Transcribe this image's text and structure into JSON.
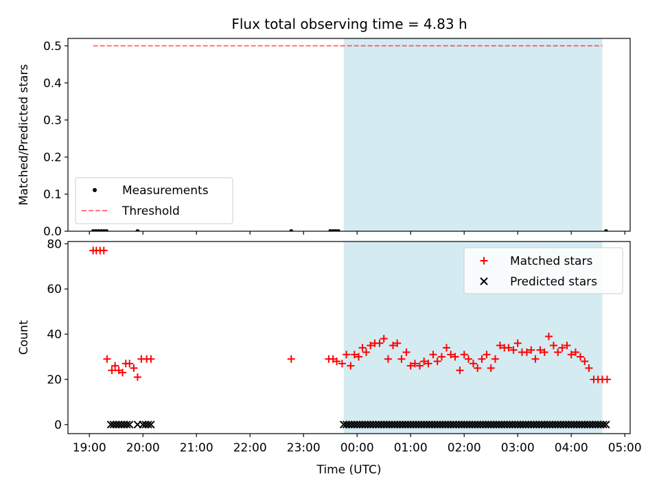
{
  "title": "Flux total observing time = 4.83 h",
  "colors": {
    "observing_band": "#add8e6",
    "measurements": "#000000",
    "threshold": "#ff0000",
    "matched": "#ff0000",
    "predicted": "#000000"
  },
  "chart_data": [
    {
      "type": "scatter",
      "ylabel": "Matched/Predicted stars",
      "xlim": [
        18.6,
        29.1
      ],
      "ylim": [
        0,
        0.52
      ],
      "yticks": [
        0.0,
        0.1,
        0.2,
        0.3,
        0.4,
        0.5
      ],
      "ytick_labels": [
        "0.0",
        "0.1",
        "0.2",
        "0.3",
        "0.4",
        "0.5"
      ],
      "shaded_x_range": [
        23.75,
        28.58
      ],
      "legend": {
        "placement": "lower-left",
        "entries": [
          "Measurements",
          "Threshold"
        ]
      },
      "series": [
        {
          "name": "Measurements",
          "marker": "dot",
          "x": [
            19.07,
            19.12,
            19.17,
            19.22,
            19.27,
            19.32,
            19.9,
            22.77,
            23.5,
            23.55,
            23.6,
            23.65,
            28.65
          ],
          "y": [
            0,
            0,
            0,
            0,
            0,
            0,
            0,
            0,
            0,
            0,
            0,
            0,
            0
          ]
        },
        {
          "name": "Threshold",
          "marker": "dashed-line",
          "x": [
            19.07,
            28.58
          ],
          "y": [
            0.5,
            0.5
          ]
        }
      ]
    },
    {
      "type": "scatter",
      "xlabel": "Time (UTC)",
      "ylabel": "Count",
      "xlim": [
        18.6,
        29.1
      ],
      "ylim": [
        -4,
        81
      ],
      "yticks": [
        0,
        20,
        40,
        60,
        80
      ],
      "ytick_labels": [
        "0",
        "20",
        "40",
        "60",
        "80"
      ],
      "xticks": [
        19,
        20,
        21,
        22,
        23,
        24,
        25,
        26,
        27,
        28,
        29
      ],
      "xtick_labels": [
        "19:00",
        "20:00",
        "21:00",
        "22:00",
        "23:00",
        "00:00",
        "01:00",
        "02:00",
        "03:00",
        "04:00",
        "05:00"
      ],
      "shaded_x_range": [
        23.75,
        28.58
      ],
      "legend": {
        "placement": "upper-right",
        "entries": [
          "Matched stars",
          "Predicted stars"
        ]
      },
      "series": [
        {
          "name": "Matched stars",
          "marker": "plus",
          "x": [
            19.07,
            19.13,
            19.2,
            19.27,
            19.33,
            19.42,
            19.48,
            19.55,
            19.62,
            19.68,
            19.75,
            19.83,
            19.9,
            19.97,
            20.07,
            20.15,
            22.77,
            23.47,
            23.55,
            23.62,
            23.72,
            23.8,
            23.88,
            23.95,
            24.03,
            24.1,
            24.17,
            24.25,
            24.33,
            24.42,
            24.5,
            24.58,
            24.67,
            24.75,
            24.83,
            24.92,
            25.0,
            25.08,
            25.17,
            25.25,
            25.33,
            25.42,
            25.5,
            25.58,
            25.67,
            25.75,
            25.83,
            25.92,
            26.0,
            26.08,
            26.17,
            26.25,
            26.33,
            26.42,
            26.5,
            26.58,
            26.67,
            26.75,
            26.83,
            26.92,
            27.0,
            27.08,
            27.17,
            27.25,
            27.33,
            27.42,
            27.5,
            27.58,
            27.67,
            27.75,
            27.83,
            27.92,
            28.0,
            28.08,
            28.17,
            28.25,
            28.33,
            28.42,
            28.5,
            28.58,
            28.67
          ],
          "y": [
            77,
            77,
            77,
            77,
            29,
            24,
            26,
            24,
            23,
            27,
            27,
            25,
            21,
            29,
            29,
            29,
            29,
            29,
            29,
            28,
            27,
            31,
            26,
            31,
            30,
            34,
            32,
            35,
            36,
            36,
            38,
            29,
            35,
            36,
            29,
            32,
            26,
            27,
            26,
            28,
            27,
            31,
            28,
            30,
            34,
            31,
            30,
            24,
            31,
            29,
            27,
            25,
            29,
            31,
            25,
            29,
            35,
            34,
            34,
            33,
            36,
            32,
            32,
            33,
            29,
            33,
            32,
            39,
            35,
            32,
            34,
            35,
            31,
            32,
            30,
            28,
            25,
            20,
            20,
            20,
            20
          ]
        },
        {
          "name": "Predicted stars",
          "marker": "x",
          "x_start_note": "",
          "x": [
            19.4,
            19.45,
            19.5,
            19.55,
            19.6,
            19.65,
            19.7,
            19.75,
            19.9,
            20.0,
            20.05,
            20.1,
            20.15,
            23.75,
            23.8,
            23.85,
            23.9,
            23.95,
            24.0,
            24.05,
            24.1,
            24.15,
            24.2,
            24.25,
            24.3,
            24.35,
            24.4,
            24.45,
            24.5,
            24.55,
            24.6,
            24.65,
            24.7,
            24.75,
            24.8,
            24.85,
            24.9,
            24.95,
            25.0,
            25.05,
            25.1,
            25.15,
            25.2,
            25.25,
            25.3,
            25.35,
            25.4,
            25.45,
            25.5,
            25.55,
            25.6,
            25.65,
            25.7,
            25.75,
            25.8,
            25.85,
            25.9,
            25.95,
            26.0,
            26.05,
            26.1,
            26.15,
            26.2,
            26.25,
            26.3,
            26.35,
            26.4,
            26.45,
            26.5,
            26.55,
            26.6,
            26.65,
            26.7,
            26.75,
            26.8,
            26.85,
            26.9,
            26.95,
            27.0,
            27.05,
            27.1,
            27.15,
            27.2,
            27.25,
            27.3,
            27.35,
            27.4,
            27.45,
            27.5,
            27.55,
            27.6,
            27.65,
            27.7,
            27.75,
            27.8,
            27.85,
            27.9,
            27.95,
            28.0,
            28.05,
            28.1,
            28.15,
            28.2,
            28.25,
            28.3,
            28.35,
            28.4,
            28.45,
            28.5,
            28.55,
            28.6,
            28.65
          ],
          "y": [
            0,
            0,
            0,
            0,
            0,
            0,
            0,
            0,
            0,
            0,
            0,
            0,
            0,
            0,
            0,
            0,
            0,
            0,
            0,
            0,
            0,
            0,
            0,
            0,
            0,
            0,
            0,
            0,
            0,
            0,
            0,
            0,
            0,
            0,
            0,
            0,
            0,
            0,
            0,
            0,
            0,
            0,
            0,
            0,
            0,
            0,
            0,
            0,
            0,
            0,
            0,
            0,
            0,
            0,
            0,
            0,
            0,
            0,
            0,
            0,
            0,
            0,
            0,
            0,
            0,
            0,
            0,
            0,
            0,
            0,
            0,
            0,
            0,
            0,
            0,
            0,
            0,
            0,
            0,
            0,
            0,
            0,
            0,
            0,
            0,
            0,
            0,
            0,
            0,
            0,
            0,
            0,
            0,
            0,
            0,
            0,
            0,
            0,
            0,
            0,
            0,
            0,
            0,
            0,
            0,
            0,
            0,
            0,
            0,
            0,
            0,
            0
          ]
        }
      ]
    }
  ]
}
